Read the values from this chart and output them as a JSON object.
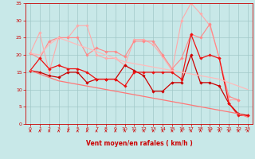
{
  "xlabel": "Vent moyen/en rafales ( km/h )",
  "xlim": [
    -0.5,
    23.5
  ],
  "ylim": [
    0,
    35
  ],
  "yticks": [
    0,
    5,
    10,
    15,
    20,
    25,
    30,
    35
  ],
  "xticks": [
    0,
    1,
    2,
    3,
    4,
    5,
    6,
    7,
    8,
    9,
    10,
    11,
    12,
    13,
    14,
    15,
    16,
    17,
    18,
    19,
    20,
    21,
    22,
    23
  ],
  "bg_color": "#c8e8e8",
  "grid_color": "#a0c8c8",
  "series": [
    {
      "x": [
        0,
        1,
        2,
        3,
        4,
        5,
        6,
        7,
        8,
        9,
        10,
        11,
        12,
        13,
        14,
        15,
        16,
        17,
        18,
        19,
        20,
        21,
        22,
        23
      ],
      "y": [
        20.5,
        26.5,
        15,
        25,
        25,
        28.5,
        28.5,
        20,
        19,
        19,
        17,
        24.5,
        24.5,
        23,
        19.5,
        15.5,
        30,
        35,
        32,
        28.5,
        19,
        7,
        7,
        null
      ],
      "color": "#ffaaaa",
      "marker": "D",
      "markersize": 1.8,
      "linewidth": 0.8
    },
    {
      "x": [
        0,
        1,
        2,
        3,
        4,
        5,
        6,
        7,
        8,
        9,
        10,
        11,
        12,
        13,
        14,
        15,
        16,
        17,
        18,
        19,
        20,
        21,
        22,
        23
      ],
      "y": [
        20.5,
        19,
        24,
        25,
        25,
        25,
        20,
        22,
        21,
        21,
        19.5,
        24,
        24,
        24,
        20,
        16,
        19,
        26,
        25,
        29,
        19,
        8,
        7,
        null
      ],
      "color": "#ff8888",
      "marker": "D",
      "markersize": 1.8,
      "linewidth": 0.8
    },
    {
      "x": [
        0,
        1,
        2,
        3,
        4,
        5,
        6,
        7,
        8,
        9,
        10,
        11,
        12,
        13,
        14,
        15,
        16,
        17,
        18,
        19,
        20,
        21,
        22,
        23
      ],
      "y": [
        15.5,
        15,
        14,
        13.5,
        15,
        15,
        12,
        13,
        13,
        13,
        17,
        15.5,
        14,
        9.5,
        9.5,
        12,
        12,
        20,
        12,
        12,
        11,
        6,
        3,
        2.5
      ],
      "color": "#cc0000",
      "marker": "D",
      "markersize": 1.8,
      "linewidth": 0.9
    },
    {
      "x": [
        0,
        1,
        2,
        3,
        4,
        5,
        6,
        7,
        8,
        9,
        10,
        11,
        12,
        13,
        14,
        15,
        16,
        17,
        18,
        19,
        20,
        21,
        22,
        23
      ],
      "y": [
        15.5,
        19,
        16,
        17,
        16,
        16,
        15,
        13,
        13,
        13,
        11,
        15,
        15,
        15,
        15,
        15,
        13,
        26,
        19,
        20,
        19,
        6,
        2.5,
        2.5
      ],
      "color": "#ee1111",
      "marker": "D",
      "markersize": 1.8,
      "linewidth": 0.9
    },
    {
      "x": [
        0,
        1,
        2,
        3,
        4,
        5,
        6,
        7,
        8,
        9,
        10,
        11,
        12,
        13,
        14,
        15,
        16,
        17,
        18,
        19,
        20,
        21,
        22,
        23
      ],
      "y": [
        20.5,
        20,
        23,
        25,
        24,
        23,
        22,
        21,
        20,
        19,
        18,
        17.5,
        17,
        16.5,
        16,
        15.5,
        15,
        14.5,
        14,
        13.5,
        13,
        12,
        11,
        10
      ],
      "color": "#ffbbbb",
      "marker": null,
      "markersize": 0,
      "linewidth": 0.9
    },
    {
      "x": [
        0,
        1,
        2,
        3,
        4,
        5,
        6,
        7,
        8,
        9,
        10,
        11,
        12,
        13,
        14,
        15,
        16,
        17,
        18,
        19,
        20,
        21,
        22,
        23
      ],
      "y": [
        15.5,
        14.5,
        13.5,
        12.5,
        12,
        11.5,
        11,
        10.5,
        10,
        9.5,
        9,
        8.5,
        8,
        7.5,
        7,
        6.5,
        6,
        5.5,
        5,
        4.5,
        4,
        3.5,
        3,
        2
      ],
      "color": "#ff7777",
      "marker": null,
      "markersize": 0,
      "linewidth": 0.9
    }
  ]
}
